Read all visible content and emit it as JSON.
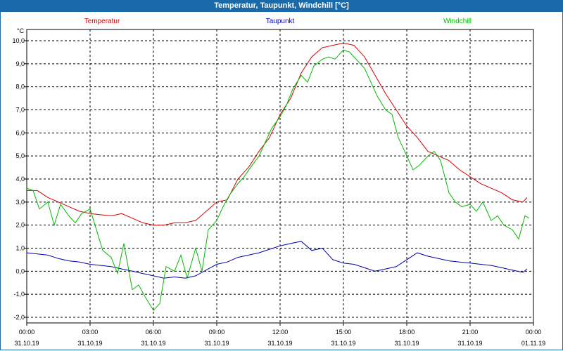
{
  "window": {
    "title": "Temperatur, Taupunkt, Windchill [°C]"
  },
  "chart_data": {
    "type": "line",
    "title": "Temperatur, Taupunkt, Windchill [°C]",
    "ylabel": "°C",
    "ylim": [
      -2.0,
      10.0
    ],
    "y_ticks": [
      "10,0",
      "9,0",
      "8,0",
      "7,0",
      "6,0",
      "5,0",
      "4,0",
      "3,0",
      "2,0",
      "1,0",
      "0,0",
      "-1,0",
      "-2,0"
    ],
    "x_ticks": [
      {
        "time": "00:00",
        "date": "31.10.19"
      },
      {
        "time": "03:00",
        "date": "31.10.19"
      },
      {
        "time": "06:00",
        "date": "31.10.19"
      },
      {
        "time": "09:00",
        "date": "31.10.19"
      },
      {
        "time": "12:00",
        "date": "31.10.19"
      },
      {
        "time": "15:00",
        "date": "31.10.19"
      },
      {
        "time": "18:00",
        "date": "31.10.19"
      },
      {
        "time": "21:00",
        "date": "31.10.19"
      },
      {
        "time": "00:00",
        "date": "01.11.19"
      }
    ],
    "xlim": [
      0,
      24
    ],
    "grid": true,
    "series": [
      {
        "name": "Temperatur",
        "color": "#d40000",
        "x": [
          0,
          0.5,
          1,
          1.5,
          2,
          2.5,
          3,
          3.5,
          4,
          4.5,
          5,
          5.5,
          6,
          6.5,
          7,
          7.5,
          8,
          8.5,
          9,
          9.5,
          10,
          10.5,
          11,
          11.5,
          12,
          12.5,
          13,
          13.5,
          14,
          14.5,
          15,
          15.5,
          16,
          16.5,
          17,
          17.5,
          18,
          18.5,
          19,
          19.5,
          20,
          20.5,
          21,
          21.5,
          22,
          22.5,
          23,
          23.5,
          23.7
        ],
        "values": [
          3.5,
          3.5,
          3.2,
          3.0,
          2.8,
          2.6,
          2.5,
          2.45,
          2.4,
          2.5,
          2.3,
          2.1,
          2.0,
          2.0,
          2.1,
          2.1,
          2.2,
          2.6,
          3.0,
          3.1,
          4.0,
          4.5,
          5.2,
          5.8,
          6.8,
          7.5,
          8.6,
          9.3,
          9.7,
          9.8,
          9.9,
          9.8,
          9.3,
          8.5,
          7.7,
          7.0,
          6.3,
          5.8,
          5.2,
          5.0,
          4.8,
          4.4,
          4.1,
          3.8,
          3.6,
          3.4,
          3.1,
          3.0,
          3.2
        ]
      },
      {
        "name": "Taupunkt",
        "color": "#0000aa",
        "x": [
          0,
          0.5,
          1,
          1.5,
          2,
          2.5,
          3,
          3.5,
          4,
          4.5,
          5,
          5.5,
          6,
          6.5,
          7,
          7.5,
          8,
          8.5,
          9,
          9.5,
          10,
          10.5,
          11,
          11.5,
          12,
          12.5,
          13,
          13.5,
          14,
          14.5,
          15,
          15.5,
          16,
          16.5,
          17,
          17.5,
          18,
          18.5,
          19,
          19.5,
          20,
          20.5,
          21,
          21.5,
          22,
          22.5,
          23,
          23.5,
          23.7
        ],
        "values": [
          0.8,
          0.75,
          0.7,
          0.55,
          0.45,
          0.4,
          0.3,
          0.25,
          0.2,
          0.1,
          0.0,
          -0.1,
          -0.2,
          -0.3,
          -0.25,
          -0.3,
          -0.2,
          0.05,
          0.3,
          0.4,
          0.6,
          0.7,
          0.8,
          0.95,
          1.1,
          1.2,
          1.3,
          0.9,
          1.0,
          0.5,
          0.35,
          0.3,
          0.15,
          0.0,
          0.1,
          0.2,
          0.5,
          0.8,
          0.65,
          0.55,
          0.45,
          0.4,
          0.35,
          0.3,
          0.25,
          0.15,
          0.05,
          -0.05,
          0.1
        ]
      },
      {
        "name": "Windchill",
        "color": "#00bb00",
        "x": [
          0,
          0.3,
          0.6,
          1,
          1.3,
          1.6,
          2,
          2.3,
          2.6,
          3,
          3.3,
          3.6,
          4,
          4.3,
          4.6,
          5,
          5.3,
          5.6,
          6,
          6.3,
          6.6,
          7,
          7.3,
          7.6,
          8,
          8.3,
          8.6,
          9,
          9.3,
          9.6,
          10,
          10.3,
          10.6,
          11,
          11.3,
          11.6,
          12,
          12.3,
          12.6,
          13,
          13.3,
          13.6,
          14,
          14.3,
          14.6,
          15,
          15.3,
          15.6,
          16,
          16.3,
          16.6,
          17,
          17.3,
          17.6,
          18,
          18.3,
          18.6,
          19,
          19.3,
          19.6,
          20,
          20.3,
          20.6,
          21,
          21.3,
          21.6,
          22,
          22.3,
          22.6,
          23,
          23.3,
          23.6,
          23.8
        ],
        "values": [
          3.6,
          3.5,
          2.7,
          3.0,
          2.0,
          2.9,
          2.4,
          2.1,
          2.5,
          2.7,
          1.8,
          0.9,
          0.6,
          -0.1,
          1.2,
          -0.8,
          -0.6,
          -1.1,
          -1.7,
          -1.4,
          0.2,
          0.0,
          0.7,
          -0.3,
          1.0,
          0.0,
          1.8,
          2.2,
          2.8,
          3.3,
          3.8,
          4.1,
          4.5,
          5.0,
          5.6,
          6.2,
          6.7,
          7.2,
          7.9,
          8.5,
          8.2,
          8.9,
          9.2,
          9.3,
          9.2,
          9.6,
          9.5,
          9.2,
          8.8,
          8.2,
          7.6,
          7.0,
          6.8,
          5.8,
          5.0,
          4.4,
          4.6,
          5.0,
          5.2,
          4.8,
          3.4,
          3.0,
          2.8,
          2.9,
          2.6,
          3.0,
          2.2,
          2.4,
          2.0,
          1.8,
          1.4,
          2.4,
          2.3
        ]
      }
    ]
  }
}
